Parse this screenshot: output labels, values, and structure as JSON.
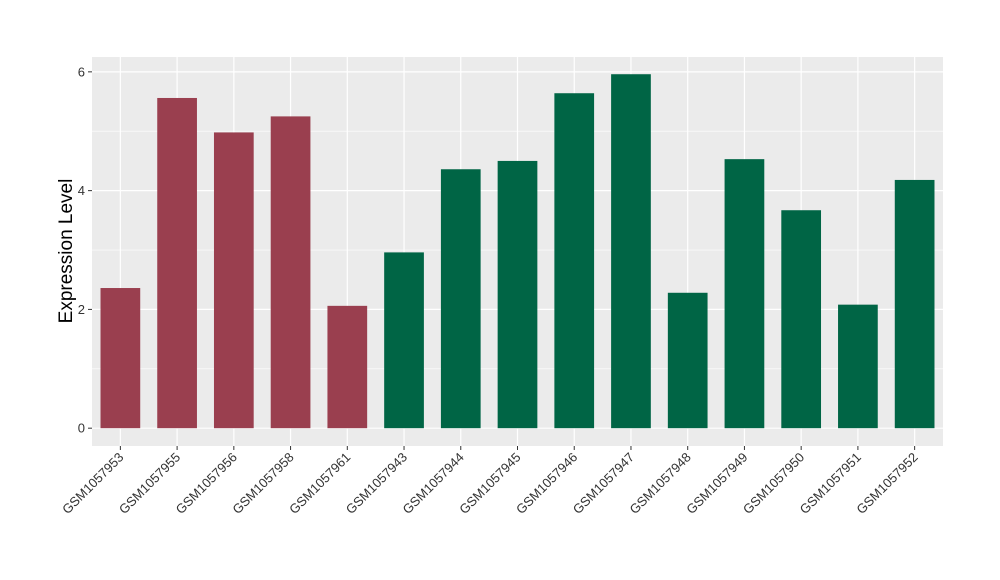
{
  "chart_data": {
    "type": "bar",
    "ylabel": "Expression Level",
    "xlabel": "",
    "ylim": [
      -0.3,
      6.25
    ],
    "yticks": [
      0,
      2,
      4,
      6
    ],
    "grid": true,
    "categories": [
      "GSM1057953",
      "GSM1057955",
      "GSM1057956",
      "GSM1057958",
      "GSM1057961",
      "GSM1057943",
      "GSM1057944",
      "GSM1057945",
      "GSM1057946",
      "GSM1057947",
      "GSM1057948",
      "GSM1057949",
      "GSM1057950",
      "GSM1057951",
      "GSM1057952"
    ],
    "values": [
      2.36,
      5.56,
      4.98,
      5.25,
      2.06,
      2.96,
      4.36,
      4.5,
      5.64,
      5.96,
      2.28,
      4.53,
      3.67,
      2.08,
      4.18
    ],
    "groups": [
      "a",
      "a",
      "a",
      "a",
      "a",
      "b",
      "b",
      "b",
      "b",
      "b",
      "b",
      "b",
      "b",
      "b",
      "b"
    ],
    "group_colors": {
      "a": "#9a3f4f",
      "b": "#006545"
    },
    "panel_background": "#ebebeb",
    "gridline_color": "#ffffff"
  }
}
